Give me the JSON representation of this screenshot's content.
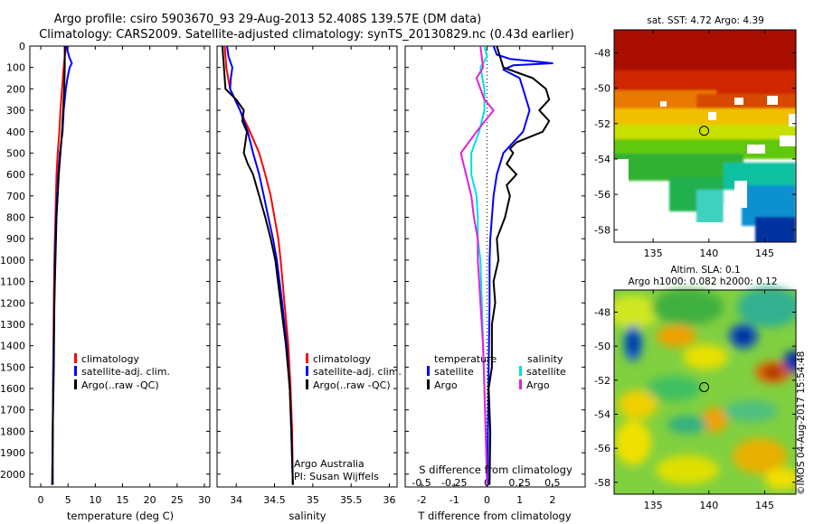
{
  "header": {
    "line1": "Argo profile: csiro 5903670_93 29-Aug-2013 52.408S 139.57E (DM data)",
    "line2": "Climatology: CARS2009. Satellite-adjusted climatology: synTS_20130829.nc (0.43d earlier)"
  },
  "colors": {
    "climatology": "#ff0000",
    "satellite": "#0000ff",
    "argo": "#000000",
    "temperature_diff": "#0000ff",
    "salinity_diff_satellite": "#00e0e0",
    "salinity_diff_argo": "#e020e0"
  },
  "depth_ticks": [
    0,
    100,
    200,
    300,
    400,
    500,
    600,
    700,
    800,
    900,
    1000,
    1100,
    1200,
    1300,
    1400,
    1500,
    1600,
    1700,
    1800,
    1900,
    2000
  ],
  "chart_data": [
    {
      "id": "temperature",
      "type": "line",
      "xlabel": "temperature (deg C)",
      "ylabel": "",
      "xlim": [
        -2,
        31
      ],
      "ylim": [
        2060,
        0
      ],
      "x_ticks": [
        "0",
        "5",
        "10",
        "15",
        "20",
        "25",
        "30"
      ],
      "legend": [
        "climatology",
        "satellite-adj. clim.",
        "Argo(..raw -QC)"
      ],
      "legend_position": "lower-center",
      "series": [
        {
          "name": "climatology",
          "color": "#ff0000",
          "depth": [
            0,
            50,
            100,
            200,
            300,
            400,
            500,
            600,
            800,
            1000,
            1200,
            1500,
            1800,
            2050
          ],
          "values": [
            4.7,
            4.4,
            4.2,
            3.9,
            3.6,
            3.4,
            3.1,
            2.9,
            2.7,
            2.5,
            2.4,
            2.3,
            2.2,
            2.1
          ]
        },
        {
          "name": "satellite-adj. clim.",
          "color": "#0000ff",
          "depth": [
            0,
            50,
            80,
            100,
            150,
            200,
            300,
            400,
            500,
            600,
            800,
            1000,
            1200,
            1500,
            1800,
            2050
          ],
          "values": [
            4.7,
            5.2,
            5.7,
            5.3,
            4.9,
            4.6,
            4.2,
            4.0,
            3.5,
            3.2,
            2.8,
            2.6,
            2.5,
            2.3,
            2.2,
            2.1
          ]
        },
        {
          "name": "Argo(..raw -QC)",
          "color": "#000000",
          "depth": [
            0,
            50,
            100,
            200,
            300,
            400,
            500,
            600,
            800,
            1000,
            1200,
            1500,
            1800,
            2050
          ],
          "values": [
            4.4,
            4.4,
            4.4,
            4.3,
            4.1,
            3.9,
            3.6,
            3.3,
            2.9,
            2.7,
            2.5,
            2.4,
            2.2,
            2.2
          ]
        }
      ]
    },
    {
      "id": "salinity",
      "type": "line",
      "xlabel": "salinity",
      "ylabel": "",
      "xlim": [
        33.75,
        36.1
      ],
      "ylim": [
        2060,
        0
      ],
      "x_ticks": [
        "34",
        "34.5",
        "35",
        "35.5",
        "36"
      ],
      "legend": [
        "climatology",
        "satellite-adj. clim.",
        "Argo(..raw -QC)"
      ],
      "legend_position": "lower-right",
      "annotation_lines": [
        "Argo Australia",
        "PI: Susan Wijffels"
      ],
      "series": [
        {
          "name": "climatology",
          "color": "#ff0000",
          "depth": [
            0,
            100,
            200,
            300,
            400,
            500,
            600,
            700,
            800,
            900,
            1000,
            1200,
            1400,
            1600,
            1800,
            2050
          ],
          "values": [
            33.85,
            33.87,
            33.92,
            34.05,
            34.18,
            34.3,
            34.38,
            34.45,
            34.5,
            34.55,
            34.58,
            34.63,
            34.68,
            34.71,
            34.73,
            34.74
          ]
        },
        {
          "name": "satellite-adj. clim.",
          "color": "#0000ff",
          "depth": [
            0,
            50,
            100,
            150,
            200,
            300,
            400,
            500,
            600,
            700,
            800,
            900,
            1000,
            1200,
            1400,
            1600,
            1800,
            2050
          ],
          "values": [
            33.88,
            33.9,
            33.95,
            33.93,
            33.92,
            34.05,
            34.15,
            34.22,
            34.3,
            34.36,
            34.42,
            34.48,
            34.53,
            34.6,
            34.66,
            34.7,
            34.72,
            34.74
          ]
        },
        {
          "name": "Argo(..raw -QC)",
          "color": "#000000",
          "depth": [
            0,
            100,
            200,
            250,
            300,
            350,
            400,
            450,
            500,
            550,
            600,
            700,
            800,
            900,
            1000,
            1200,
            1400,
            1600,
            1800,
            2050
          ],
          "values": [
            33.82,
            33.84,
            33.86,
            34.0,
            34.1,
            34.08,
            34.14,
            34.12,
            34.1,
            34.15,
            34.22,
            34.3,
            34.38,
            34.45,
            34.51,
            34.58,
            34.65,
            34.7,
            34.72,
            34.74
          ]
        }
      ]
    },
    {
      "id": "difference",
      "type": "line",
      "xlabel": "T difference from climatology",
      "x2label": "S difference from climatology",
      "ylabel": "",
      "xlim": [
        -2.5,
        3.0
      ],
      "x2lim": [
        -0.625,
        0.75
      ],
      "ylim": [
        2060,
        0
      ],
      "x_ticks": [
        "-2",
        "-1",
        "0",
        "1",
        "2"
      ],
      "x2_ticks": [
        "-0.5",
        "-0.25",
        "0",
        "0.25",
        "0.5"
      ],
      "legend_headers": [
        "temperature",
        "salinity"
      ],
      "legend": [
        "satellite",
        "Argo",
        "satellite",
        "Argo"
      ],
      "legend_position": "lower-center",
      "zero_line": "dotted",
      "series": [
        {
          "name": "satellite",
          "group": "temperature",
          "color": "#0000ff",
          "depth": [
            0,
            40,
            60,
            80,
            90,
            110,
            150,
            200,
            300,
            400,
            500,
            600,
            700,
            800,
            900,
            1000,
            1200,
            1500,
            1800,
            2050
          ],
          "values": [
            0.2,
            0.3,
            0.7,
            2.0,
            0.8,
            0.5,
            1.0,
            1.1,
            1.3,
            1.1,
            0.5,
            0.3,
            0.2,
            0.15,
            0.1,
            0.08,
            0.08,
            0.05,
            0.03,
            0.02
          ]
        },
        {
          "name": "Argo",
          "group": "temperature",
          "color": "#000000",
          "depth": [
            0,
            50,
            100,
            150,
            200,
            250,
            300,
            350,
            400,
            450,
            480,
            500,
            550,
            600,
            650,
            700,
            800,
            900,
            1000,
            1100,
            1200,
            1300,
            1500,
            1600,
            1800,
            2050
          ],
          "values": [
            0.3,
            0.4,
            0.5,
            1.4,
            1.8,
            1.9,
            1.6,
            1.9,
            1.7,
            0.9,
            0.7,
            0.8,
            0.6,
            0.9,
            0.6,
            0.7,
            0.55,
            0.3,
            0.35,
            0.2,
            0.25,
            0.15,
            0.15,
            0.05,
            0.1,
            0.08
          ]
        },
        {
          "name": "satellite",
          "group": "salinity",
          "color": "#00e0e0",
          "depth": [
            0,
            50,
            100,
            200,
            300,
            400,
            500,
            600,
            700,
            800,
            900,
            1000,
            1200,
            1400,
            1600,
            1800,
            2050
          ],
          "values": [
            -0.02,
            0.0,
            -0.05,
            -0.02,
            -0.02,
            -0.06,
            -0.12,
            -0.12,
            -0.08,
            -0.07,
            -0.07,
            -0.05,
            -0.04,
            -0.03,
            -0.02,
            -0.01,
            0.0
          ]
        },
        {
          "name": "Argo",
          "group": "salinity",
          "color": "#e020e0",
          "depth": [
            0,
            100,
            150,
            200,
            250,
            300,
            400,
            500,
            600,
            700,
            800,
            900,
            1000,
            1200,
            1400,
            1600,
            1800,
            2050
          ],
          "values": [
            -0.05,
            -0.03,
            -0.08,
            -0.05,
            -0.02,
            0.05,
            -0.08,
            -0.2,
            -0.16,
            -0.12,
            -0.1,
            -0.07,
            -0.07,
            -0.05,
            -0.03,
            -0.02,
            -0.01,
            0.0
          ]
        }
      ]
    },
    {
      "id": "sst-map",
      "type": "heatmap",
      "title": "sat. SST: 4.72  Argo: 4.39",
      "x_ticks": [
        "135",
        "140",
        "145"
      ],
      "y_ticks": [
        "-48",
        "-50",
        "-52",
        "-54",
        "-56",
        "-58"
      ],
      "xlim": [
        131.5,
        147.8
      ],
      "ylim": [
        -58.7,
        -46.7
      ],
      "marker": {
        "lon": 139.57,
        "lat": -52.408
      }
    },
    {
      "id": "sla-map",
      "type": "heatmap",
      "title": "Altim. SLA: 0.1",
      "subtitle": "Argo h1000: 0.082 h2000: 0.12",
      "x_ticks": [
        "135",
        "140",
        "145"
      ],
      "y_ticks": [
        "-48",
        "-50",
        "-52",
        "-54",
        "-56",
        "-58"
      ],
      "xlim": [
        131.5,
        147.8
      ],
      "ylim": [
        -58.7,
        -46.7
      ],
      "marker": {
        "lon": 139.57,
        "lat": -52.408
      }
    }
  ],
  "footer": {
    "stamp": "©IMOS 04-Aug-2017 15:54:48"
  }
}
